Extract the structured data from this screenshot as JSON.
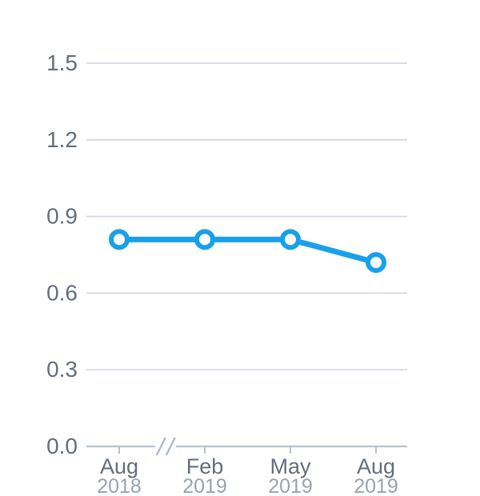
{
  "chart_data": {
    "type": "line",
    "title": "",
    "categories": [
      {
        "month": "Aug",
        "year": "2018"
      },
      {
        "month": "Feb",
        "year": "2019"
      },
      {
        "month": "May",
        "year": "2019"
      },
      {
        "month": "Aug",
        "year": "2019"
      }
    ],
    "series": [
      {
        "name": "value",
        "values": [
          0.81,
          0.81,
          0.81,
          0.72
        ]
      }
    ],
    "ylim": [
      0,
      1.5
    ],
    "ytick_labels": [
      "0.0",
      "0.3",
      "0.6",
      "0.9",
      "1.2",
      "1.5"
    ],
    "xlabel": "",
    "ylabel": "",
    "grid": true,
    "legend_position": "none",
    "x_axis_break": true,
    "x_axis_break_after_index": 0,
    "colors": {
      "line": "#18A0EA",
      "marker_fill": "#FFFFFF",
      "grid": "#D3DAE3",
      "axis": "#B8C2CE",
      "break_mark": "#A9B6C6",
      "tick_label": "#636E7D",
      "year_label": "#98A2AF",
      "background": "#FFFFFF"
    }
  }
}
